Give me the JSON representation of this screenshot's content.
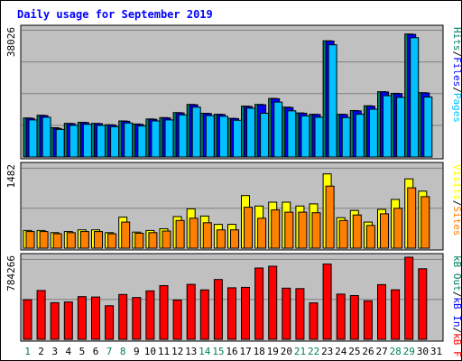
{
  "chart_data": {
    "type": "bar",
    "title": "Daily usage for September 2019",
    "days": [
      "1",
      "2",
      "3",
      "4",
      "5",
      "6",
      "7",
      "8",
      "9",
      "10",
      "11",
      "12",
      "13",
      "14",
      "15",
      "16",
      "17",
      "18",
      "19",
      "20",
      "21",
      "22",
      "23",
      "24",
      "25",
      "26",
      "27",
      "28",
      "29",
      "30",
      "31"
    ],
    "weekend_days": [
      "1",
      "7",
      "8",
      "14",
      "15",
      "21",
      "22",
      "28",
      "29"
    ],
    "panels": [
      {
        "id": "top",
        "max_label": "38026",
        "ymax": 38026,
        "side_labels": [
          "Pages",
          "Files",
          "Hits"
        ],
        "series": [
          {
            "name": "Hits",
            "color": "#00805c",
            "values": [
              11600,
              12400,
              8700,
              10000,
              10300,
              10000,
              9600,
              10700,
              9800,
              11300,
              11700,
              13200,
              15600,
              13000,
              12700,
              11500,
              15100,
              15600,
              17400,
              14800,
              13100,
              12700,
              34500,
              12700,
              13800,
              15200,
              19400,
              18900,
              36500,
              19100,
              0
            ]
          },
          {
            "name": "Files",
            "color": "#0000ff",
            "values": [
              11500,
              12300,
              8500,
              9900,
              10200,
              9900,
              9500,
              10600,
              9700,
              11200,
              11600,
              13100,
              15500,
              12900,
              12600,
              11400,
              15000,
              15500,
              17300,
              14700,
              13000,
              12600,
              34400,
              12600,
              13700,
              15100,
              19300,
              18800,
              36400,
              19000,
              0
            ]
          },
          {
            "name": "Pages",
            "color": "#00c0ff",
            "values": [
              11000,
              11800,
              8200,
              9400,
              9700,
              9400,
              9000,
              10100,
              9200,
              10700,
              11000,
              12500,
              14800,
              12300,
              12100,
              10900,
              14500,
              13000,
              16300,
              13700,
              12200,
              11800,
              33300,
              11700,
              12700,
              14200,
              18200,
              17700,
              35400,
              17800,
              0
            ]
          }
        ]
      },
      {
        "id": "mid",
        "max_label": "1482",
        "ymax": 1482,
        "side_labels": [
          "Sites",
          "Visits"
        ],
        "series": [
          {
            "name": "Visits",
            "color": "#ffff00",
            "values": [
              320,
              320,
              280,
              300,
              330,
              330,
              280,
              560,
              290,
              320,
              350,
              570,
              710,
              580,
              430,
              430,
              950,
              760,
              830,
              830,
              760,
              800,
              1340,
              550,
              680,
              470,
              700,
              880,
              1250,
              1030,
              0
            ]
          },
          {
            "name": "Sites",
            "color": "#ff8000",
            "values": [
              300,
              300,
              260,
              280,
              300,
              300,
              260,
              470,
              270,
              280,
              310,
              500,
              540,
              460,
              330,
              330,
              740,
              540,
              690,
              650,
              650,
              640,
              1120,
              500,
              600,
              410,
              620,
              720,
              1090,
              930,
              0
            ]
          }
        ]
      },
      {
        "id": "bottom",
        "max_label": "784266",
        "ymax": 784266,
        "side_labels": [
          "kB F",
          "kB In",
          "kB Out"
        ],
        "series": [
          {
            "name": "kB F",
            "color": "#ff0000",
            "values": [
              378000,
              466000,
              350000,
              357000,
              408000,
              404000,
              321000,
              428000,
              399000,
              463000,
              513000,
              375000,
              525000,
              472000,
              571000,
              492000,
              496000,
              681000,
              698000,
              489000,
              484000,
              348000,
              719000,
              432000,
              418000,
              368000,
              522000,
              473000,
              784266,
              674000,
              0
            ]
          }
        ]
      }
    ]
  }
}
